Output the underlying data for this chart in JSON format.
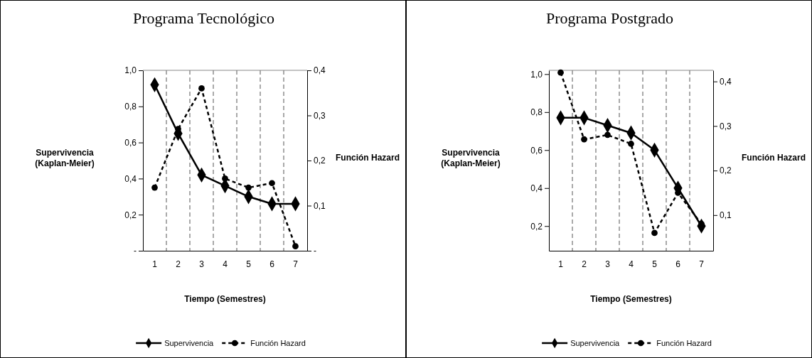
{
  "chart_data": [
    {
      "type": "line",
      "title": "Programa Tecnológico",
      "xlabel": "Tiempo (Semestres)",
      "ylabel": "Supervivencia (Kaplan-Meier)",
      "y2label": "Función Hazard",
      "categories": [
        "1",
        "2",
        "3",
        "4",
        "5",
        "6",
        "7"
      ],
      "series": [
        {
          "name": "Supervivencia",
          "color": "#000000",
          "marker": "diamond",
          "line_style": "solid",
          "values": [
            0.92,
            0.65,
            0.42,
            0.36,
            0.3,
            0.26,
            0.26
          ]
        },
        {
          "name": "Función Hazard",
          "color": "#000000",
          "marker": "circle",
          "line_style": "dashed",
          "axis": "y2",
          "values": [
            0.14,
            0.27,
            0.36,
            0.16,
            0.14,
            0.15,
            0.01
          ]
        }
      ],
      "ylim": [
        0,
        1
      ],
      "yticks": [
        {
          "value": 0,
          "label": "-"
        },
        {
          "value": 0.2,
          "label": "0,2"
        },
        {
          "value": 0.4,
          "label": "0,4"
        },
        {
          "value": 0.6,
          "label": "0,6"
        },
        {
          "value": 0.8,
          "label": "0,8"
        },
        {
          "value": 1,
          "label": "1,0"
        }
      ],
      "y2lim": [
        0,
        0.4
      ],
      "y2ticks": [
        {
          "value": 0,
          "label": "-"
        },
        {
          "value": 0.1,
          "label": "0,1"
        },
        {
          "value": 0.2,
          "label": "0,2"
        },
        {
          "value": 0.3,
          "label": "0,3"
        },
        {
          "value": 0.4,
          "label": "0,4"
        }
      ],
      "grid": "x",
      "legend": "bottom"
    },
    {
      "type": "line",
      "title": "Programa Postgrado",
      "xlabel": "Tiempo (Semestres)",
      "ylabel": "Supervivencia (Kaplan-Meier)",
      "y2label": "Función Hazard",
      "categories": [
        "1",
        "2",
        "3",
        "4",
        "5",
        "6",
        "7"
      ],
      "series": [
        {
          "name": "Supervivencia",
          "color": "#000000",
          "marker": "diamond",
          "line_style": "solid",
          "values": [
            0.77,
            0.77,
            0.73,
            0.69,
            0.6,
            0.4,
            0.2
          ]
        },
        {
          "name": "Función Hazard",
          "color": "#000000",
          "marker": "circle",
          "line_style": "dashed",
          "axis": "y2",
          "values": [
            0.42,
            0.27,
            0.28,
            0.26,
            0.06,
            0.15,
            0.08
          ]
        }
      ],
      "ylim": [
        0.07,
        1.02
      ],
      "yticks": [
        {
          "value": 0.2,
          "label": "0,2"
        },
        {
          "value": 0.4,
          "label": "0,4"
        },
        {
          "value": 0.6,
          "label": "0,6"
        },
        {
          "value": 0.8,
          "label": "0,8"
        },
        {
          "value": 1,
          "label": "1,0"
        }
      ],
      "y2lim": [
        0.02,
        0.425
      ],
      "y2ticks": [
        {
          "value": 0.1,
          "label": "0,1"
        },
        {
          "value": 0.2,
          "label": "0,2"
        },
        {
          "value": 0.3,
          "label": "0,3"
        },
        {
          "value": 0.4,
          "label": "0,4"
        }
      ],
      "grid": "x",
      "legend": "bottom"
    }
  ]
}
